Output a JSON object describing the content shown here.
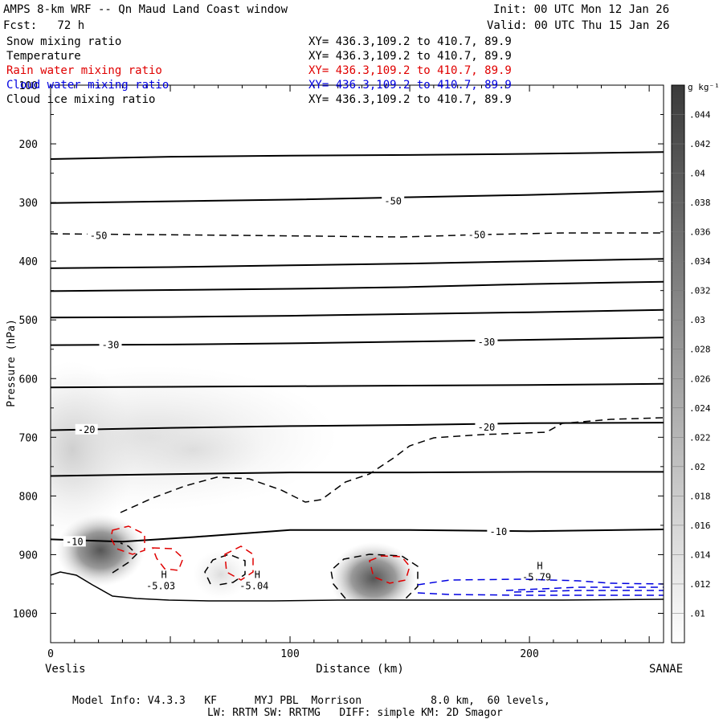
{
  "header": {
    "title": "AMPS 8-km WRF -- Qn Maud Land Coast window",
    "init": "Init: 00 UTC Mon 12 Jan 26",
    "fcst": "Fcst:   72 h",
    "valid": "Valid: 00 UTC Thu 15 Jan 26"
  },
  "legend_rows": [
    {
      "label": "Snow mixing ratio",
      "xy": "XY= 436.3,109.2 to 410.7, 89.9",
      "color": "#000000"
    },
    {
      "label": "Temperature",
      "xy": "XY= 436.3,109.2 to 410.7, 89.9",
      "color": "#000000"
    },
    {
      "label": "Rain water mixing ratio",
      "xy": "XY= 436.3,109.2 to 410.7, 89.9",
      "color": "#e00000"
    },
    {
      "label": "Cloud water mixing ratio",
      "xy": "XY= 436.3,109.2 to 410.7, 89.9",
      "color": "#0000e0"
    },
    {
      "label": "Cloud ice mixing ratio",
      "xy": "XY= 436.3,109.2 to 410.7, 89.9",
      "color": "#000000"
    }
  ],
  "footer": {
    "line1": "Model Info: V4.3.3   KF      MYJ PBL  Morrison           8.0 km,  60 levels,",
    "line2": "LW: RRTM SW: RRTMG   DIFF: simple KM: 2D Smagor"
  },
  "chart_data": {
    "type": "cross-section",
    "xlabel": "Distance (km)",
    "ylabel": "Pressure (hPa)",
    "xlim": [
      0,
      256
    ],
    "ylim": [
      1050,
      100
    ],
    "x_ticks": [
      0,
      100,
      200
    ],
    "y_ticks": [
      100,
      200,
      300,
      400,
      500,
      600,
      700,
      800,
      900,
      1000
    ],
    "left_endpoint": "Veslis",
    "right_endpoint": "SANAE",
    "colorbar": {
      "units": "g kg⁻¹",
      "levels": [
        ".01",
        ".012",
        ".014",
        ".016",
        ".018",
        ".02",
        ".022",
        ".024",
        ".026",
        ".028",
        ".03",
        ".032",
        ".034",
        ".036",
        ".038",
        ".04",
        ".042",
        ".044"
      ]
    },
    "temperature_contours": [
      {
        "points": [
          [
            0,
            226
          ],
          [
            50,
            222
          ],
          [
            100,
            220
          ],
          [
            150,
            219
          ],
          [
            200,
            217
          ],
          [
            256,
            214
          ]
        ]
      },
      {
        "points": [
          [
            0,
            301
          ],
          [
            50,
            298
          ],
          [
            100,
            295
          ],
          [
            150,
            291
          ],
          [
            200,
            287
          ],
          [
            256,
            281
          ]
        ],
        "label": "-50",
        "label_at": [
          143,
          298
        ]
      },
      {
        "points": [
          [
            0,
            412
          ],
          [
            50,
            410
          ],
          [
            100,
            407
          ],
          [
            150,
            404
          ],
          [
            200,
            400
          ],
          [
            256,
            396
          ]
        ]
      },
      {
        "points": [
          [
            0,
            451
          ],
          [
            50,
            449
          ],
          [
            100,
            447
          ],
          [
            150,
            444
          ],
          [
            200,
            439
          ],
          [
            256,
            435
          ]
        ]
      },
      {
        "points": [
          [
            0,
            496
          ],
          [
            50,
            495
          ],
          [
            100,
            493
          ],
          [
            150,
            490
          ],
          [
            200,
            487
          ],
          [
            256,
            483
          ]
        ]
      },
      {
        "points": [
          [
            0,
            543
          ],
          [
            50,
            542
          ],
          [
            100,
            540
          ],
          [
            150,
            537
          ],
          [
            200,
            534
          ],
          [
            256,
            530
          ]
        ],
        "label": "-30",
        "label_at": [
          25,
          543
        ]
      },
      {
        "points": [
          [
            0,
            615
          ],
          [
            50,
            614
          ],
          [
            100,
            613
          ],
          [
            150,
            612
          ],
          [
            200,
            611
          ],
          [
            256,
            609
          ]
        ]
      },
      {
        "points": [
          [
            0,
            688
          ],
          [
            50,
            684
          ],
          [
            100,
            681
          ],
          [
            150,
            679
          ],
          [
            200,
            676
          ],
          [
            256,
            675
          ]
        ],
        "label": "-20",
        "label_at": [
          15,
          687
        ]
      },
      {
        "points": [
          [
            0,
            766
          ],
          [
            50,
            763
          ],
          [
            100,
            760
          ],
          [
            150,
            760
          ],
          [
            200,
            759
          ],
          [
            256,
            759
          ]
        ]
      },
      {
        "points": [
          [
            0,
            874
          ],
          [
            30,
            878
          ],
          [
            60,
            870
          ],
          [
            100,
            858
          ],
          [
            150,
            858
          ],
          [
            200,
            860
          ],
          [
            256,
            857
          ]
        ],
        "label": "-10",
        "label_at": [
          10,
          878
        ]
      }
    ],
    "temperature_labels": [
      {
        "text": "-50",
        "x": 143,
        "p": 298
      },
      {
        "text": "-30",
        "x": 25,
        "p": 543
      },
      {
        "text": "-30",
        "x": 182,
        "p": 538
      },
      {
        "text": "-20",
        "x": 15,
        "p": 687
      },
      {
        "text": "-20",
        "x": 182,
        "p": 683
      },
      {
        "text": "-10",
        "x": 10,
        "p": 878
      },
      {
        "text": "-10",
        "x": 187,
        "p": 861
      }
    ],
    "dashed_labels": [
      {
        "text": "-50",
        "x": 20,
        "p": 357
      },
      {
        "text": "-50",
        "x": 178,
        "p": 355
      }
    ],
    "extrema": [
      {
        "mark": "H",
        "value": "-5.03",
        "x": 46,
        "p": 955
      },
      {
        "mark": "H",
        "value": "-5.04",
        "x": 85,
        "p": 955
      },
      {
        "mark": "H",
        "value": "-5.79",
        "x": 203,
        "p": 940
      }
    ]
  }
}
